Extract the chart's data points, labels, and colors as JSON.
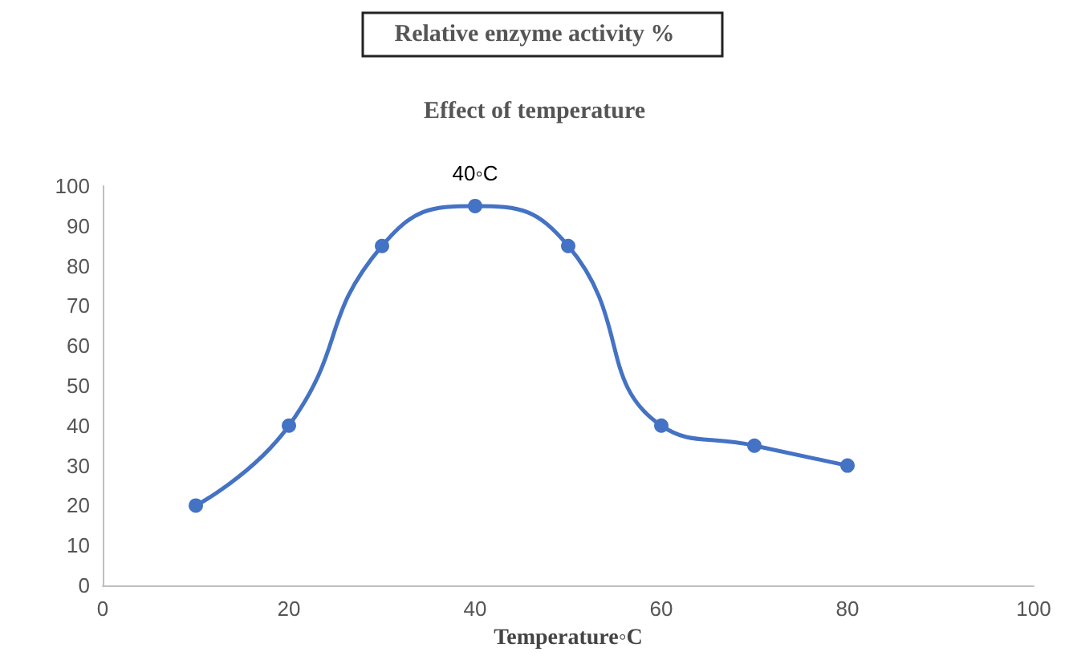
{
  "chart_data": {
    "type": "line",
    "title": "Relative enzyme activity %",
    "subtitle": "Effect of temperature",
    "xlabel": "Temperature◦C",
    "x": [
      10,
      20,
      30,
      40,
      50,
      60,
      70,
      80
    ],
    "series": [
      {
        "color": "#4472c4",
        "values": [
          20,
          40,
          85,
          95,
          85,
          40,
          35,
          30
        ]
      }
    ],
    "xlim": [
      0,
      100
    ],
    "xticks": [
      0,
      20,
      40,
      60,
      80,
      100
    ],
    "ylim": [
      0,
      100
    ],
    "yticks": [
      0,
      10,
      20,
      30,
      40,
      50,
      60,
      70,
      80,
      90,
      100
    ],
    "annotations": [
      {
        "text": "40◦C",
        "x": 40,
        "y": 95
      }
    ],
    "marker": "circle",
    "line_style": "solid"
  }
}
